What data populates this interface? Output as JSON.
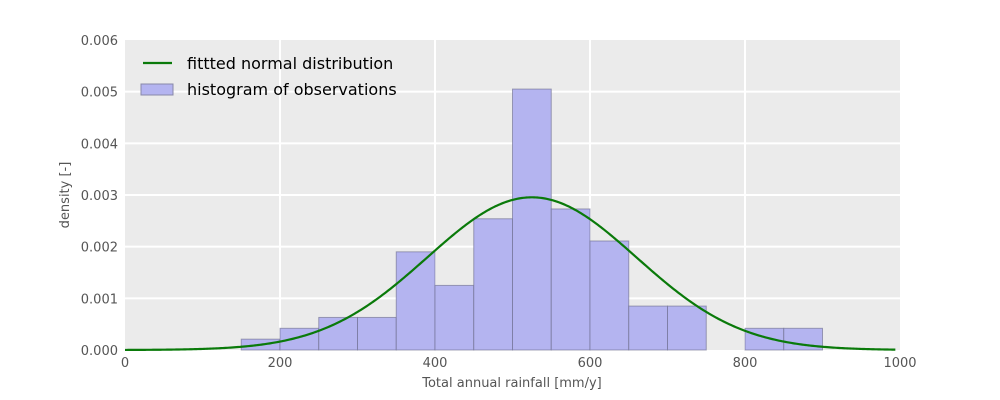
{
  "chart_data": {
    "type": "bar",
    "xlabel": "Total annual rainfall [mm/y]",
    "ylabel": "density [-]",
    "xlim": [
      0,
      1000
    ],
    "ylim": [
      0,
      0.006
    ],
    "xticks": [
      0,
      200,
      400,
      600,
      800,
      1000
    ],
    "xtick_labels": [
      "0",
      "200",
      "400",
      "600",
      "800",
      "1000"
    ],
    "yticks": [
      0,
      0.001,
      0.002,
      0.003,
      0.004,
      0.005,
      0.006
    ],
    "ytick_labels": [
      "0.000",
      "0.001",
      "0.002",
      "0.003",
      "0.004",
      "0.005",
      "0.006"
    ],
    "grid": true,
    "legend_position": "top-left",
    "histogram": {
      "name": "histogram of observations",
      "color": "#b4b4f0",
      "bins": [
        {
          "x0": 150,
          "x1": 200,
          "value": 0.00021
        },
        {
          "x0": 200,
          "x1": 250,
          "value": 0.00042
        },
        {
          "x0": 250,
          "x1": 300,
          "value": 0.00063
        },
        {
          "x0": 300,
          "x1": 350,
          "value": 0.00063
        },
        {
          "x0": 350,
          "x1": 400,
          "value": 0.0019
        },
        {
          "x0": 400,
          "x1": 450,
          "value": 0.00125
        },
        {
          "x0": 450,
          "x1": 500,
          "value": 0.00254
        },
        {
          "x0": 500,
          "x1": 550,
          "value": 0.00505
        },
        {
          "x0": 550,
          "x1": 600,
          "value": 0.00273
        },
        {
          "x0": 600,
          "x1": 650,
          "value": 0.00211
        },
        {
          "x0": 650,
          "x1": 700,
          "value": 0.00085
        },
        {
          "x0": 700,
          "x1": 750,
          "value": 0.00085
        },
        {
          "x0": 800,
          "x1": 850,
          "value": 0.00042
        },
        {
          "x0": 850,
          "x1": 900,
          "value": 0.00042
        }
      ]
    },
    "fit": {
      "name": "fittted normal distribution",
      "color": "#0a7a0a",
      "mean": 525,
      "std": 135
    }
  }
}
